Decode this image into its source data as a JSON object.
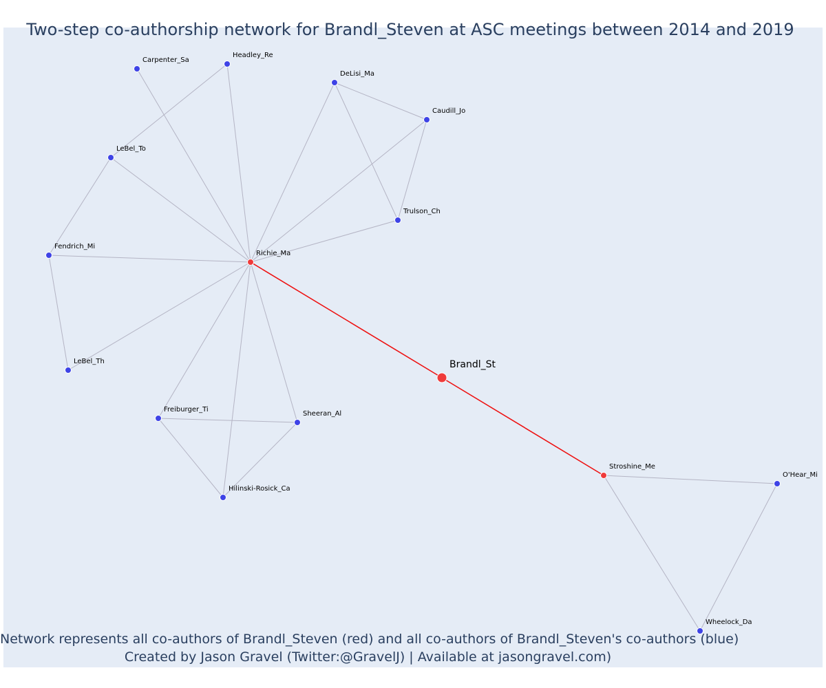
{
  "title": "Two-step co-authorship network for Brandl_Steven at ASC meetings between 2014 and 2019",
  "footer": {
    "line1": "Network represents all co-authors of Brandl_Steven (red) and all co-authors of Brandl_Steven's co-authors (blue)",
    "line2": "Created by Jason Gravel (Twitter:@GravelJ) | Available at jasongravel.com)"
  },
  "colors": {
    "background": "#e5ecf6",
    "first_step": "#ef3b3b",
    "second_step": "#3e43e6",
    "edge": "#b4b4c4",
    "focal_edge": "#ee1111",
    "text": "#2a3f5f"
  },
  "nodes": [
    {
      "id": "Brandl_St",
      "group": "focal"
    },
    {
      "id": "Richie_Ma",
      "group": "first"
    },
    {
      "id": "Stroshine_Me",
      "group": "first"
    },
    {
      "id": "Carpenter_Sa",
      "group": "second"
    },
    {
      "id": "Headley_Re",
      "group": "second"
    },
    {
      "id": "DeLisi_Ma",
      "group": "second"
    },
    {
      "id": "Caudill_Jo",
      "group": "second"
    },
    {
      "id": "LeBel_To",
      "group": "second"
    },
    {
      "id": "Trulson_Ch",
      "group": "second"
    },
    {
      "id": "Fendrich_Mi",
      "group": "second"
    },
    {
      "id": "LeBel_Th",
      "group": "second"
    },
    {
      "id": "Freiburger_Ti",
      "group": "second"
    },
    {
      "id": "Sheeran_Al",
      "group": "second"
    },
    {
      "id": "Hilinski-Rosick_Ca",
      "group": "second"
    },
    {
      "id": "O'Hear_Mi",
      "group": "second"
    },
    {
      "id": "Wheelock_Da",
      "group": "second"
    }
  ],
  "edges": [
    [
      "Brandl_St",
      "Richie_Ma"
    ],
    [
      "Brandl_St",
      "Stroshine_Me"
    ],
    [
      "Richie_Ma",
      "Carpenter_Sa"
    ],
    [
      "Richie_Ma",
      "Headley_Re"
    ],
    [
      "Richie_Ma",
      "LeBel_To"
    ],
    [
      "Richie_Ma",
      "Fendrich_Mi"
    ],
    [
      "Richie_Ma",
      "LeBel_Th"
    ],
    [
      "Richie_Ma",
      "Freiburger_Ti"
    ],
    [
      "Richie_Ma",
      "Hilinski-Rosick_Ca"
    ],
    [
      "Richie_Ma",
      "Sheeran_Al"
    ],
    [
      "Richie_Ma",
      "DeLisi_Ma"
    ],
    [
      "Richie_Ma",
      "Caudill_Jo"
    ],
    [
      "Richie_Ma",
      "Trulson_Ch"
    ],
    [
      "Headley_Re",
      "LeBel_To"
    ],
    [
      "LeBel_To",
      "Fendrich_Mi"
    ],
    [
      "Fendrich_Mi",
      "LeBel_Th"
    ],
    [
      "DeLisi_Ma",
      "Caudill_Jo"
    ],
    [
      "DeLisi_Ma",
      "Trulson_Ch"
    ],
    [
      "Caudill_Jo",
      "Trulson_Ch"
    ],
    [
      "Freiburger_Ti",
      "Sheeran_Al"
    ],
    [
      "Freiburger_Ti",
      "Hilinski-Rosick_Ca"
    ],
    [
      "Sheeran_Al",
      "Hilinski-Rosick_Ca"
    ],
    [
      "Stroshine_Me",
      "O'Hear_Mi"
    ],
    [
      "Stroshine_Me",
      "Wheelock_Da"
    ],
    [
      "O'Hear_Mi",
      "Wheelock_Da"
    ]
  ]
}
